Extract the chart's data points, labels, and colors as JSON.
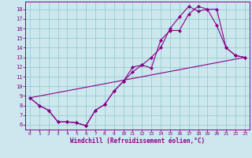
{
  "xlabel": "Windchill (Refroidissement éolien,°C)",
  "bg_color": "#cce8ee",
  "line_color": "#880088",
  "grid_color": "#99cccc",
  "spine_color": "#880088",
  "tick_color": "#880088",
  "xlim": [
    -0.5,
    23.5
  ],
  "ylim": [
    5.5,
    18.8
  ],
  "xticks": [
    0,
    1,
    2,
    3,
    4,
    5,
    6,
    7,
    8,
    9,
    10,
    11,
    12,
    13,
    14,
    15,
    16,
    17,
    18,
    19,
    20,
    21,
    22,
    23
  ],
  "yticks": [
    6,
    7,
    8,
    9,
    10,
    11,
    12,
    13,
    14,
    15,
    16,
    17,
    18
  ],
  "line1_x": [
    0,
    1,
    2,
    3,
    4,
    5,
    6,
    7,
    8,
    9,
    10,
    11,
    12,
    13,
    14,
    15,
    16,
    17,
    18,
    19,
    20,
    21,
    22,
    23
  ],
  "line1_y": [
    8.8,
    8.0,
    7.5,
    6.3,
    6.3,
    6.2,
    5.9,
    7.5,
    8.1,
    9.5,
    10.5,
    12.0,
    12.2,
    11.9,
    14.8,
    15.8,
    15.8,
    17.5,
    18.3,
    18.0,
    16.3,
    14.0,
    13.2,
    13.0
  ],
  "line2_x": [
    0,
    1,
    2,
    3,
    4,
    5,
    6,
    7,
    8,
    9,
    10,
    11,
    12,
    13,
    14,
    15,
    16,
    17,
    18,
    19,
    20,
    21,
    22,
    23
  ],
  "line2_y": [
    8.8,
    8.0,
    7.5,
    6.3,
    6.3,
    6.2,
    5.9,
    7.5,
    8.1,
    9.5,
    10.5,
    11.5,
    12.2,
    13.0,
    14.0,
    16.0,
    17.2,
    18.3,
    17.8,
    18.0,
    18.0,
    14.0,
    13.2,
    13.0
  ],
  "line3_x": [
    0,
    23
  ],
  "line3_y": [
    8.8,
    13.0
  ]
}
